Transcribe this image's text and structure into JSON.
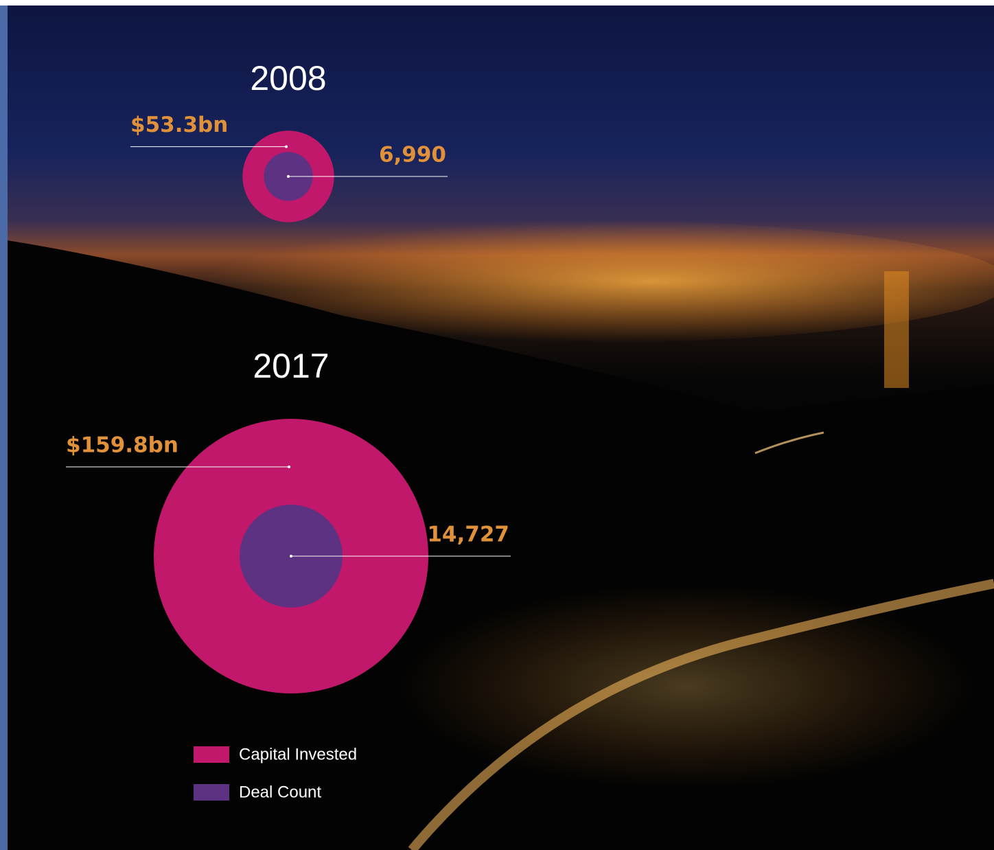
{
  "chart_data": {
    "type": "nested-circle",
    "categories": [
      "2008",
      "2017"
    ],
    "series": [
      {
        "name": "Capital Invested",
        "color": "#c2186b",
        "values": [
          53.3,
          159.8
        ],
        "value_labels": [
          "$53.3bn",
          "$159.8bn"
        ]
      },
      {
        "name": "Deal Count",
        "color": "#5e3282",
        "values": [
          6990,
          14727
        ],
        "value_labels": [
          "6,990",
          "14,727"
        ]
      }
    ]
  }
}
